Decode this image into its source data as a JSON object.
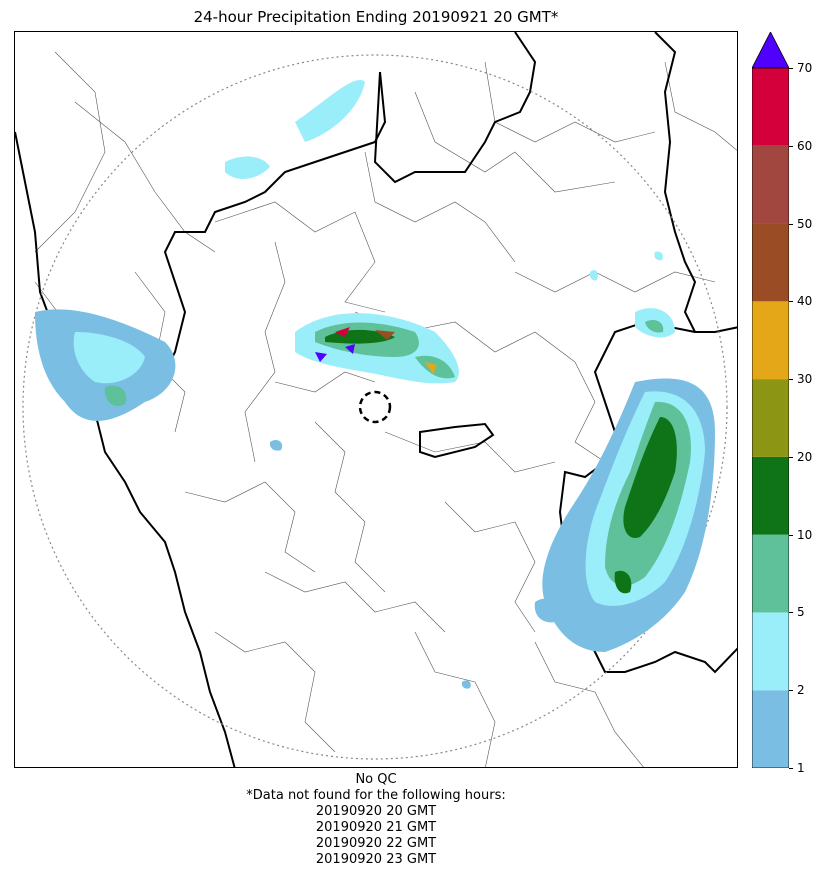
{
  "title": "24-hour Precipitation Ending 20190921 20 GMT*",
  "map": {
    "type": "radar precipitation accumulation",
    "range_ring": "dotted",
    "radar_site_marker": "dashed circle"
  },
  "colorbar": {
    "levels": [
      "1",
      "2",
      "5",
      "10",
      "20",
      "30",
      "40",
      "50",
      "60",
      "70"
    ],
    "colors": [
      "#7abfe3",
      "#9aeefa",
      "#5ec199",
      "#0f7418",
      "#8c9614",
      "#e3a718",
      "#9a4d24",
      "#a24740",
      "#d3003c"
    ],
    "extend_color": "#5000ff"
  },
  "footer": {
    "qc": "No QC",
    "missing_header": "*Data not found for the following hours:",
    "missing_hours": [
      "20190920 20 GMT",
      "20190920 21 GMT",
      "20190920 22 GMT",
      "20190920 23 GMT"
    ]
  }
}
